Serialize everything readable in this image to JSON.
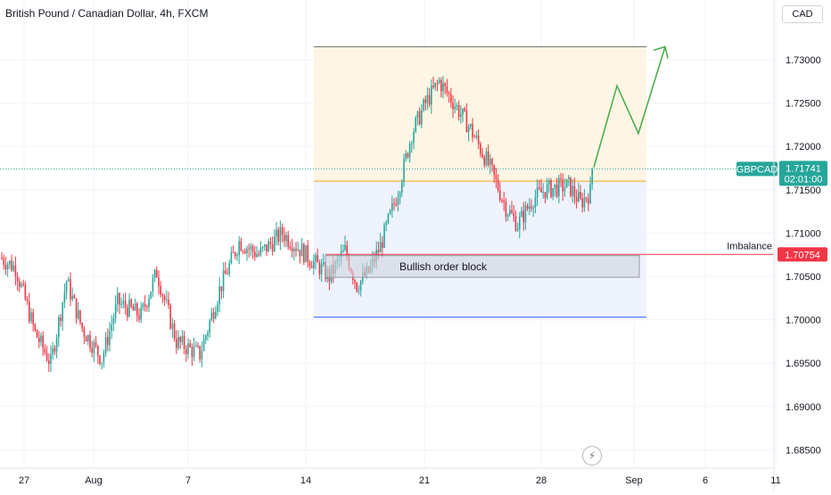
{
  "header": {
    "title": "British Pound / Canadian Dollar, 4h, FXCM",
    "currency": "CAD"
  },
  "labels": {
    "ticker": "GBPCAD",
    "last_price": "1.71741",
    "countdown": "02:01:00",
    "imbalance_label": "Imbalance",
    "imbalance_price": "1.70754",
    "order_block_label": "Bullish order block"
  },
  "colors": {
    "up": "#26a69a",
    "down": "#f23645",
    "grid": "#f0f3fa",
    "zone_upper": "#fef5e4",
    "zone_lower": "#eef3fe",
    "zone_mid_line": "#f5a623",
    "zone_top_line": "#6b6b6b",
    "zone_bottom_line": "#2962ff",
    "order_block_fill": "#d1d4dc",
    "arrow": "#4caf50",
    "imbalance_line": "#f23645"
  },
  "icons": {
    "flash": "lightning-icon"
  },
  "chart_data": {
    "type": "candlestick",
    "symbol": "GBPCAD",
    "interval": "4h",
    "ylim": [
      1.683,
      1.737
    ],
    "y_ticks": [
      "1.73000",
      "1.72500",
      "1.72000",
      "1.71500",
      "1.71000",
      "1.70500",
      "1.70000",
      "1.69500",
      "1.69000",
      "1.68500"
    ],
    "x_ticks": [
      "27",
      "Aug",
      "7",
      "14",
      "21",
      "28",
      "Sep",
      "6",
      "11"
    ],
    "last_price": 1.71741,
    "candles": [],
    "annotations": {
      "upper_zone": [
        1.716,
        1.7315
      ],
      "lower_zone": [
        1.7003,
        1.716
      ],
      "order_block": [
        1.7049,
        1.7074
      ],
      "imbalance_level": 1.70754,
      "projection": [
        1.7176,
        1.727,
        1.7215,
        1.7315
      ]
    }
  }
}
